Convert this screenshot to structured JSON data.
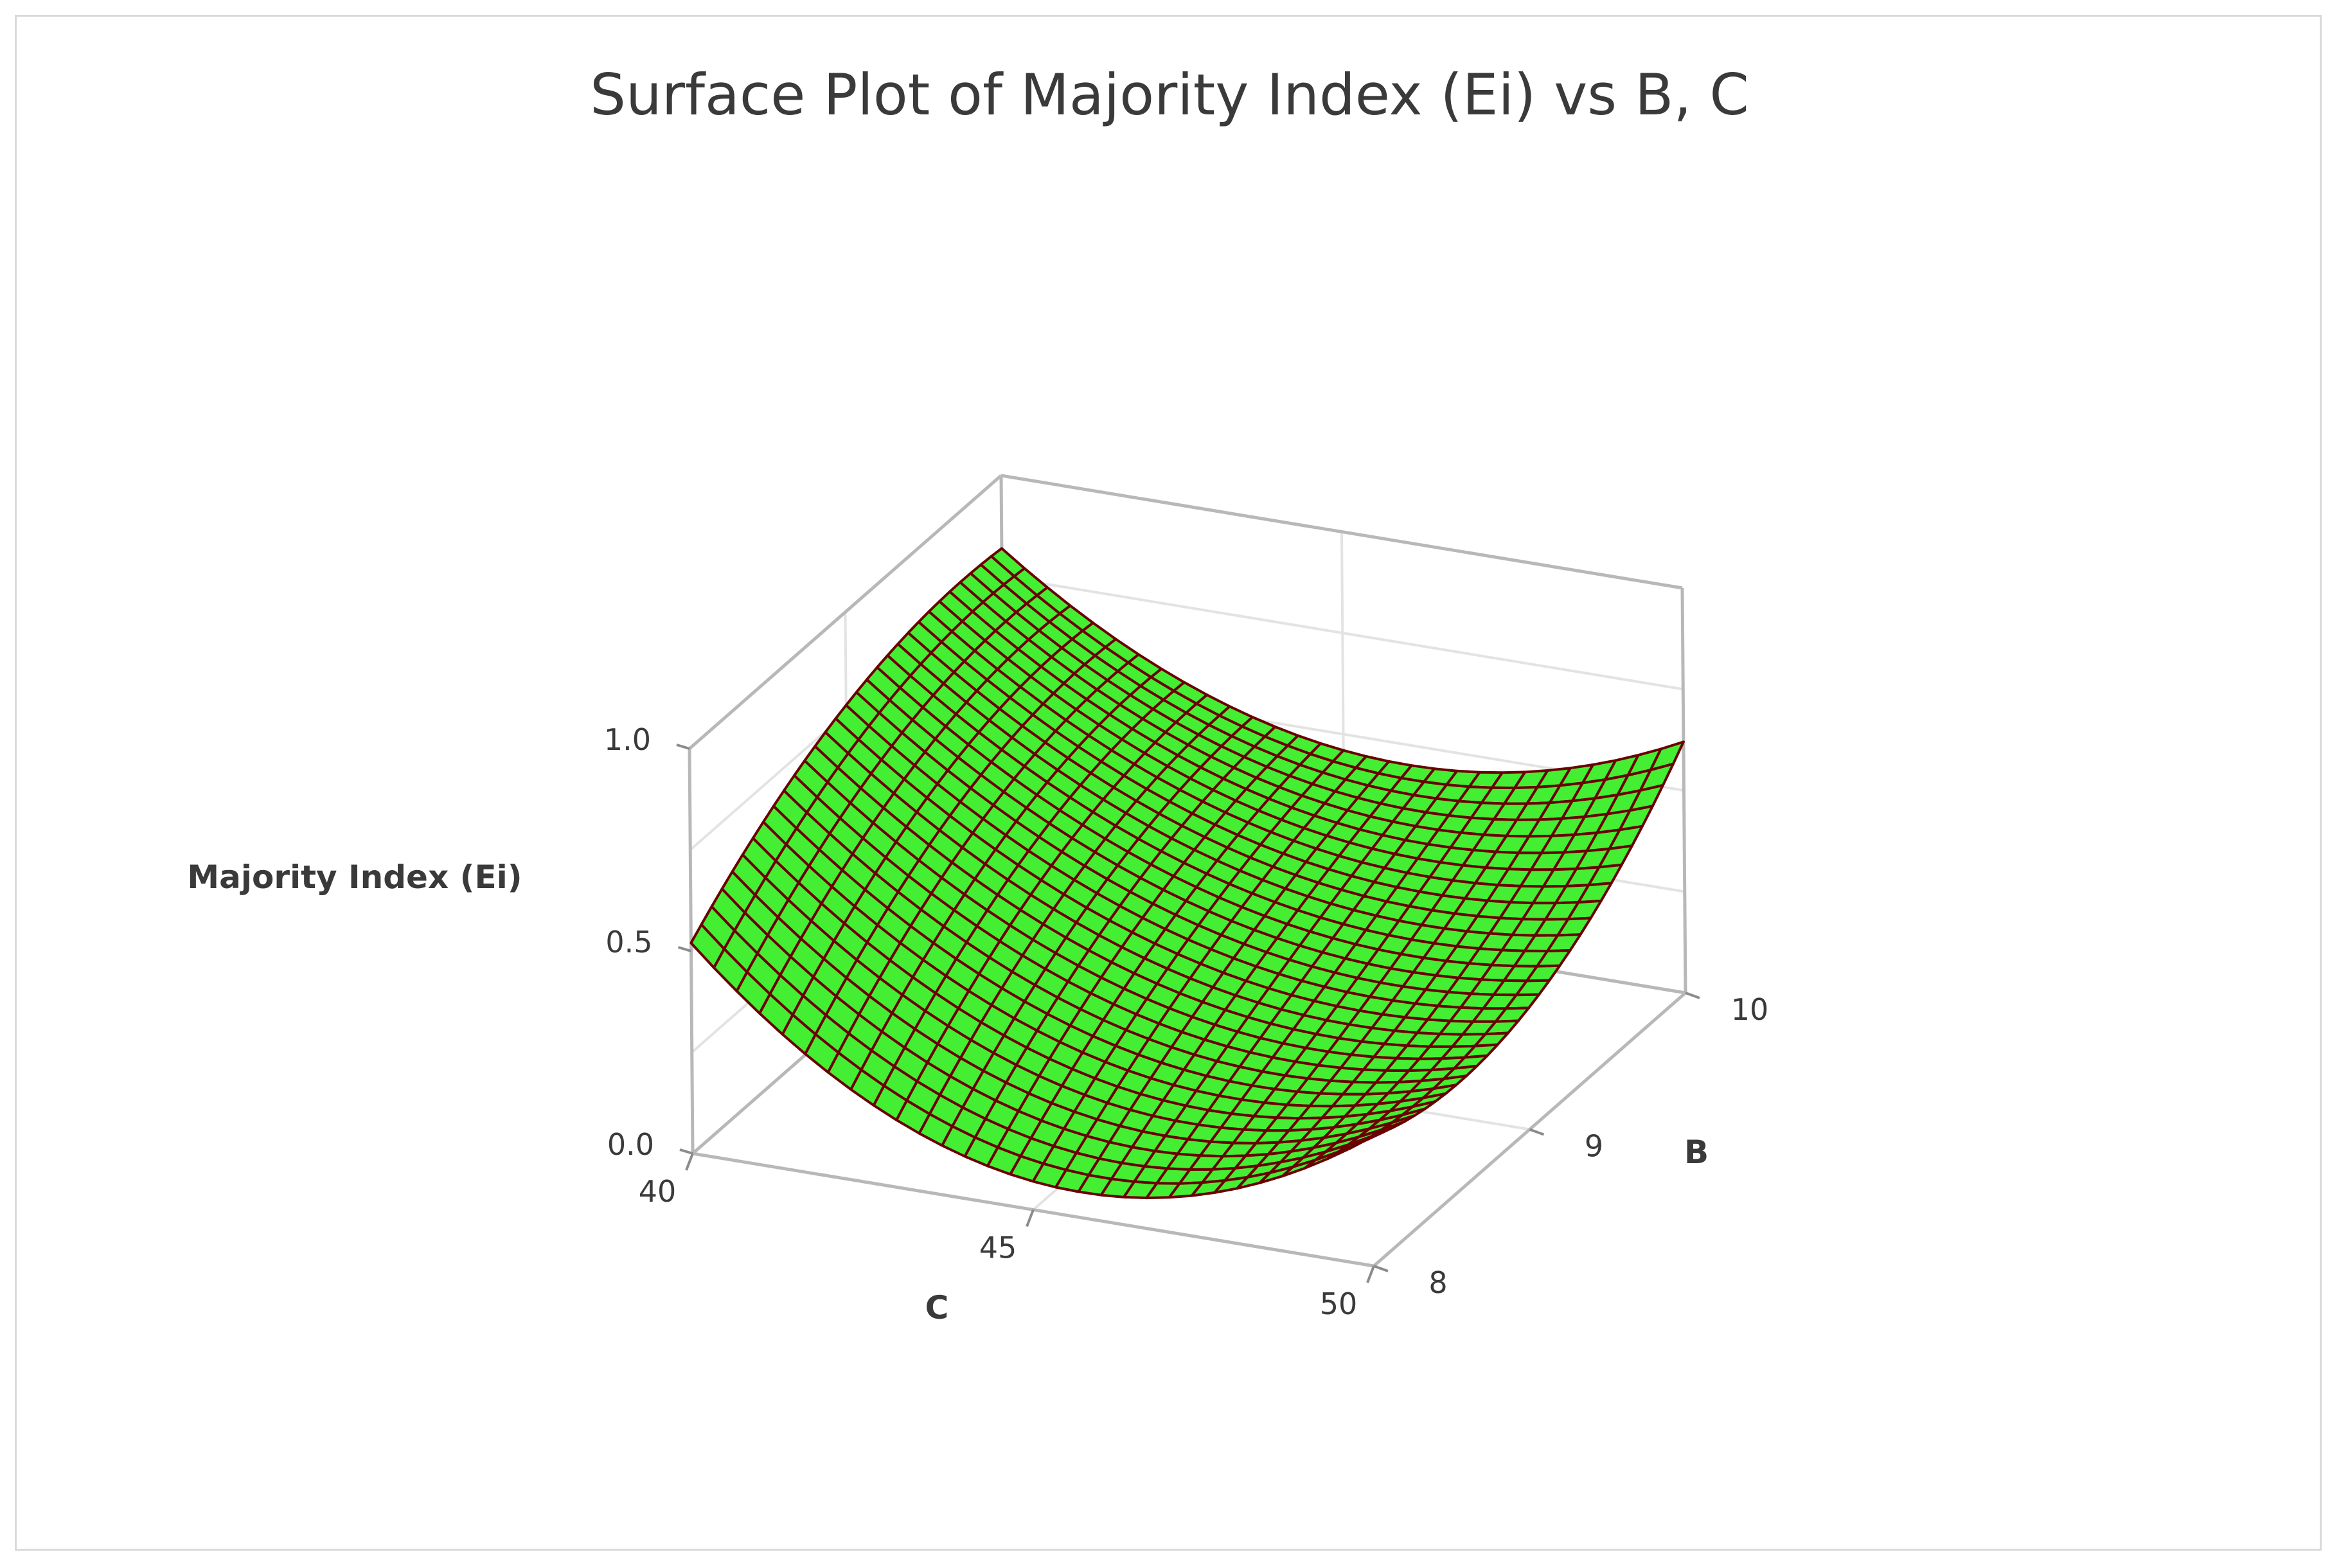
{
  "chart_data": {
    "type": "surface",
    "title": "Surface Plot of Majority Index (Ei) vs B, C",
    "zlabel": "Majority Index (Ei)",
    "xlabel": "C",
    "ylabel": "B",
    "xlim": [
      40,
      50
    ],
    "ylim": [
      8,
      10
    ],
    "zlim": [
      0.0,
      1.0
    ],
    "x_ticks": [
      "40",
      "45",
      "50"
    ],
    "y_ticks": [
      "8",
      "9",
      "10"
    ],
    "z_ticks": [
      "0.0",
      "0.5",
      "1.0"
    ],
    "grid": true,
    "surface_color": "#44ee33",
    "mesh_color": "#6b0000",
    "x": [
      40,
      45,
      50
    ],
    "y": [
      8,
      9,
      10
    ],
    "z": [
      [
        0.52,
        0.07,
        0.32
      ],
      [
        0.77,
        0.33,
        0.3
      ],
      [
        0.82,
        0.46,
        0.62
      ]
    ]
  }
}
